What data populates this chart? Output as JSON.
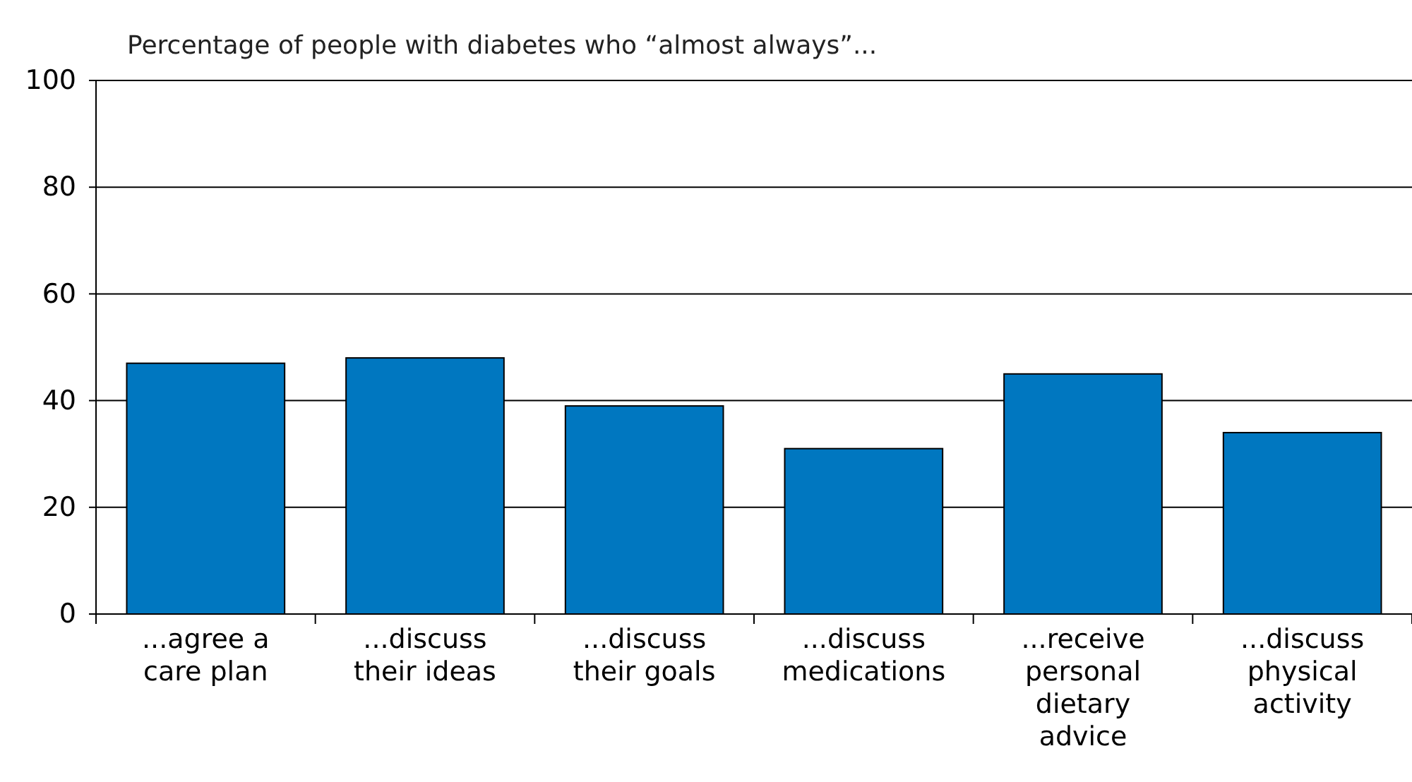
{
  "chart_data": {
    "type": "bar",
    "title": "Percentage of people with diabetes who “almost always”...",
    "categories": [
      "...agree a care plan",
      "...discuss their ideas",
      "...discuss their goals",
      "...discuss medications",
      "...receive personal dietary advice",
      "...discuss physical activity"
    ],
    "values": [
      47,
      48,
      39,
      31,
      45,
      34
    ],
    "color": "#0077c0",
    "ylim": [
      0,
      100
    ],
    "yticks": [
      0,
      20,
      40,
      60,
      80,
      100
    ],
    "grid": "y"
  }
}
